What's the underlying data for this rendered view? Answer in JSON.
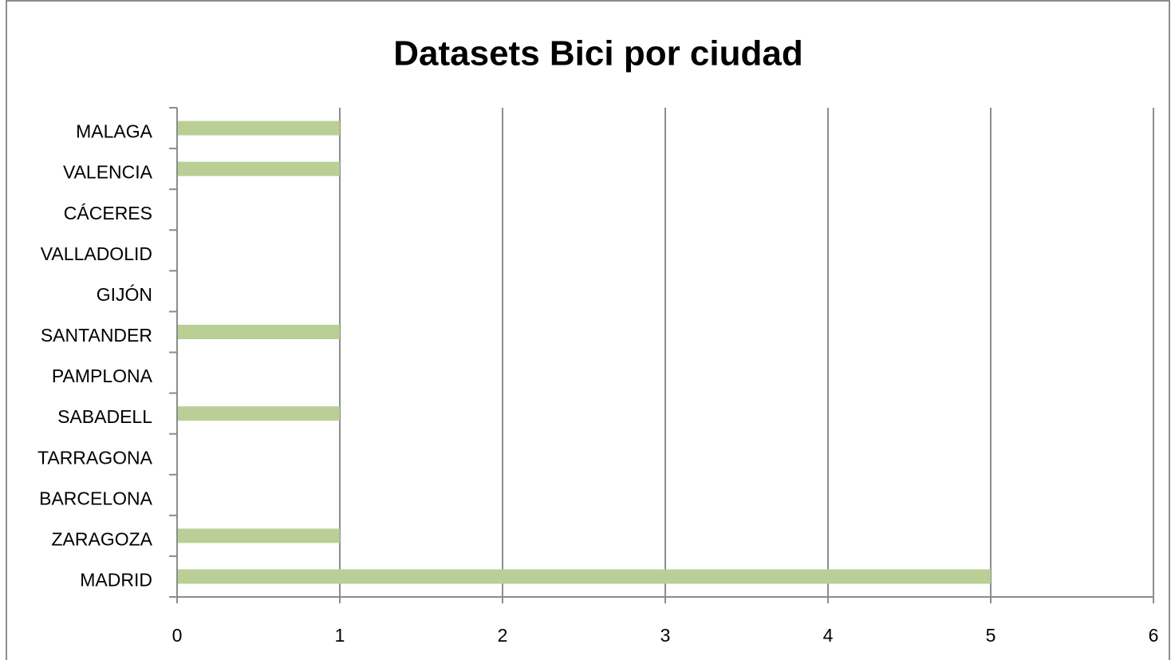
{
  "chart_data": {
    "type": "bar",
    "orientation": "horizontal",
    "title": "Datasets Bici por ciudad",
    "categories": [
      "MALAGA",
      "VALENCIA",
      "CÁCERES",
      "VALLADOLID",
      "GIJÓN",
      "SANTANDER",
      "PAMPLONA",
      "SABADELL",
      "TARRAGONA",
      "BARCELONA",
      "ZARAGOZA",
      "MADRID"
    ],
    "values": [
      1,
      1,
      0,
      0,
      0,
      1,
      0,
      1,
      0,
      0,
      1,
      5
    ],
    "color": "#b9cf96",
    "xlim": [
      0,
      6
    ],
    "xticks": [
      0,
      1,
      2,
      3,
      4,
      5,
      6
    ],
    "grid": true
  }
}
